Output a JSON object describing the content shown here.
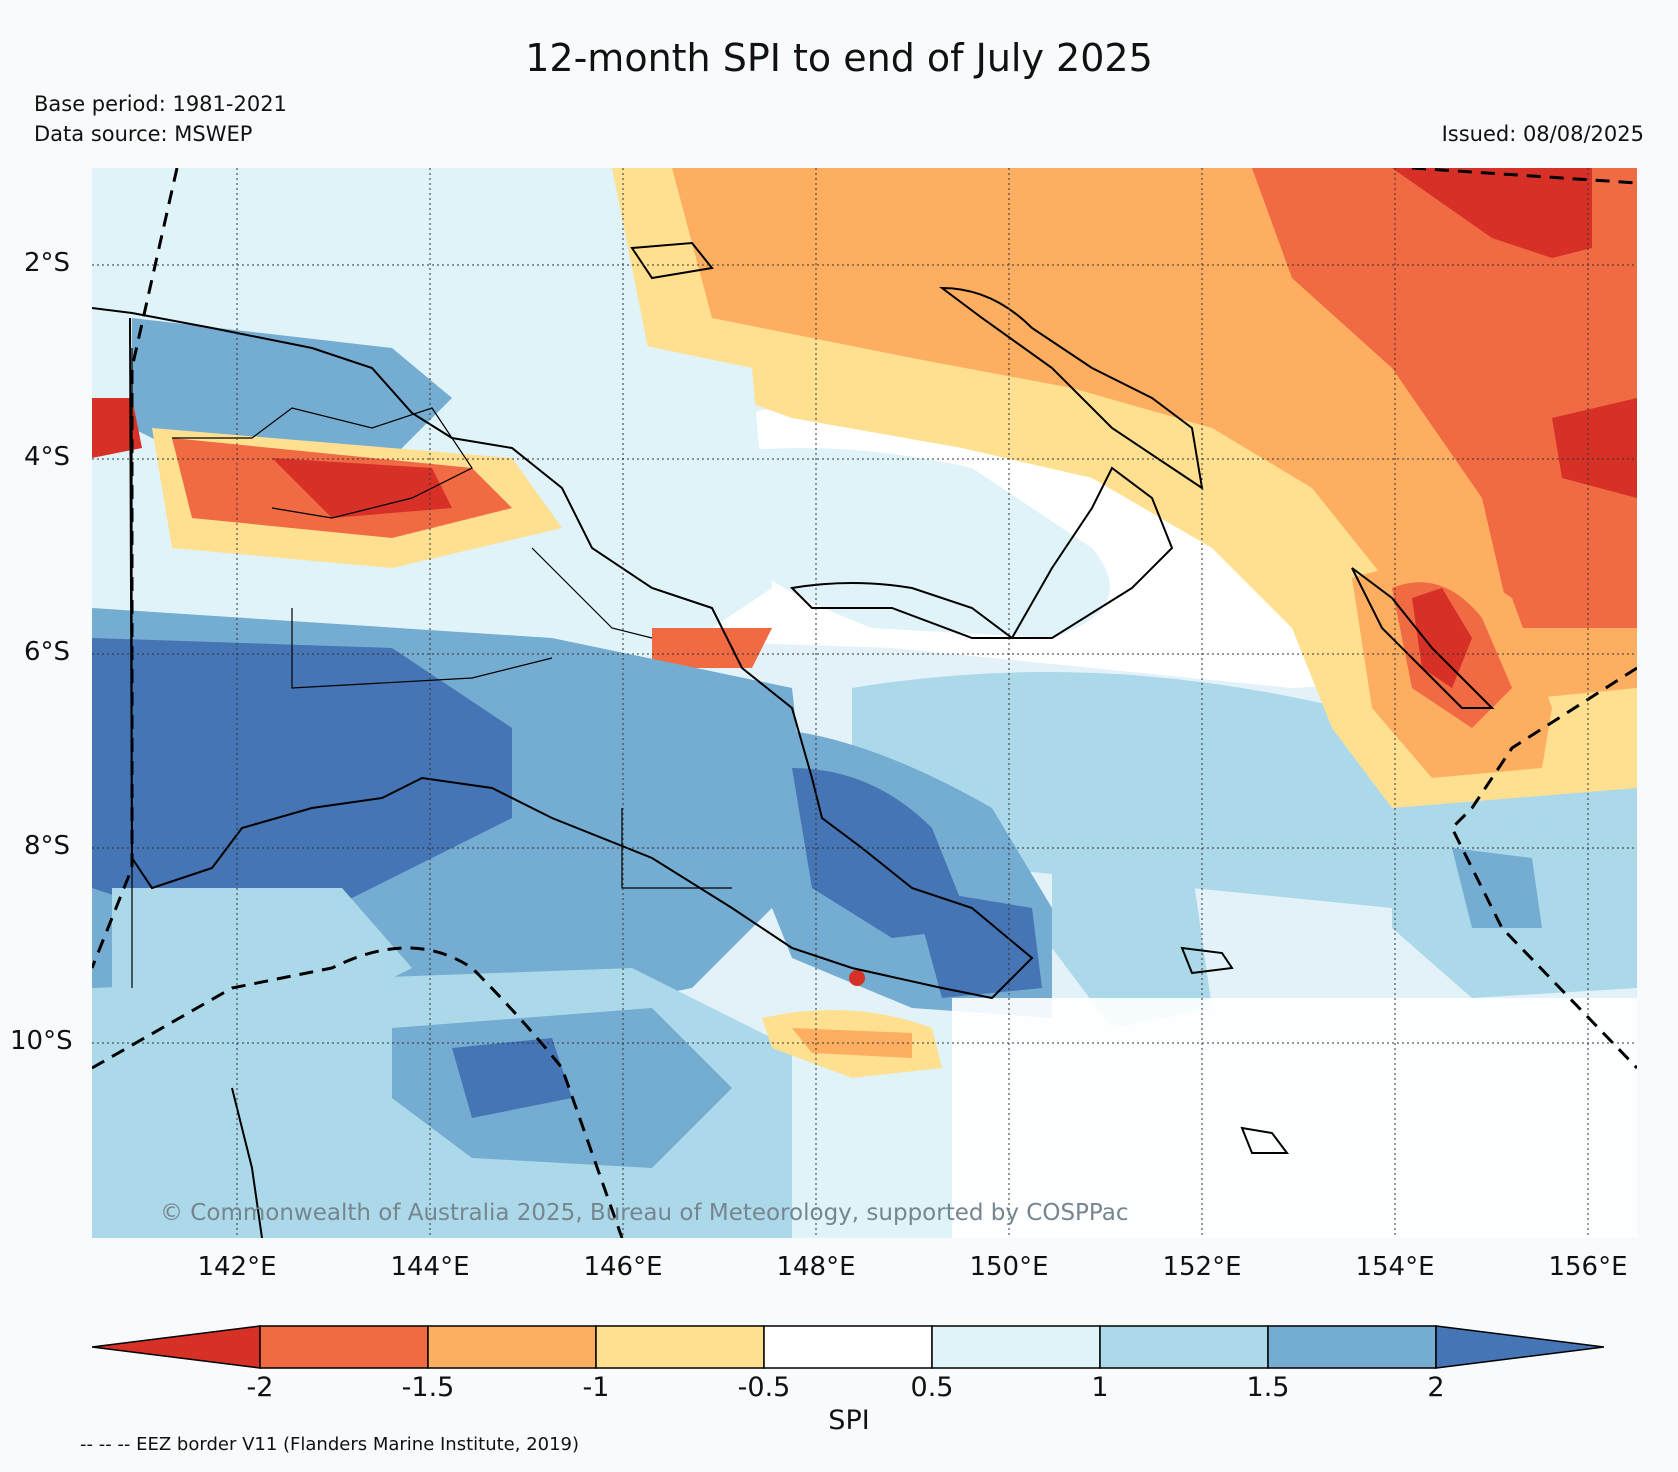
{
  "header": {
    "title": "12-month SPI to end of July 2025",
    "base_period": "Base period: 1981-2021",
    "data_source": "Data source: MSWEP",
    "issued": "Issued: 08/08/2025"
  },
  "map": {
    "lat_labels": [
      "2°S",
      "4°S",
      "6°S",
      "8°S",
      "10°S"
    ],
    "lon_labels": [
      "142°E",
      "144°E",
      "146°E",
      "148°E",
      "150°E",
      "152°E",
      "154°E",
      "156°E"
    ],
    "copyright": "© Commonwealth of Australia 2025, Bureau of Meteorology, supported by COSPPac"
  },
  "colorbar": {
    "label": "SPI",
    "ticks": [
      "-2",
      "-1.5",
      "-1",
      "-0.5",
      "0.5",
      "1",
      "1.5",
      "2"
    ],
    "colors": [
      "#d73027",
      "#f06a43",
      "#fdae61",
      "#fee090",
      "#ffffff",
      "#e0f3f8",
      "#abd9e9",
      "#74add1",
      "#4575b4"
    ]
  },
  "footer": {
    "eez_note": "-- -- -- EEZ border V11 (Flanders Marine Institute, 2019)"
  }
}
